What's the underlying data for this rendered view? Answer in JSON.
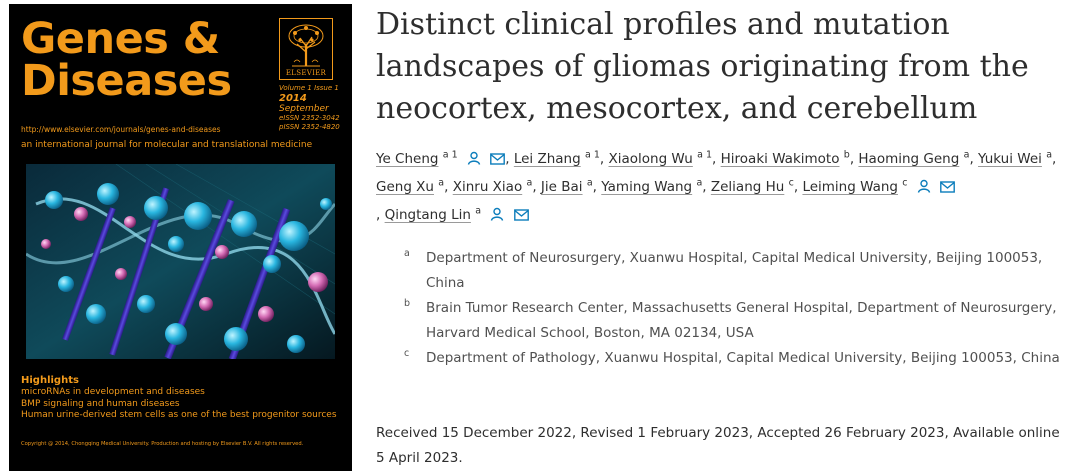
{
  "cover": {
    "title_line1": "Genes &",
    "title_line2": "Diseases",
    "publisher_logo_text": "ELSEVIER",
    "volume_issue": "Volume 1 Issue 1",
    "year": "2014",
    "month": "September",
    "eissn": "eISSN 2352-3042",
    "pissn": "pISSN 2352-4820",
    "url": "http://www.elsevier.com/journals/genes-and-diseases",
    "tagline": "an international journal for molecular and translational medicine",
    "highlights_title": "Highlights",
    "highlights": [
      "microRNAs in development and diseases",
      "BMP signaling and human diseases",
      "Human urine-derived stem cells as one of the best progenitor sources"
    ],
    "copyright": "Copyright @ 2014, Chongqing Medical University. Production and hosting by Elsevier B.V. All rights reserved.",
    "accent_color": "#f29a1b"
  },
  "article": {
    "title": "Distinct clinical profiles and mutation landscapes of gliomas originating from the neocortex, mesocortex, and cerebellum",
    "authors": [
      {
        "name": "Ye Cheng",
        "sup": "a 1",
        "person_icon": true,
        "mail_icon": true
      },
      {
        "name": "Lei Zhang",
        "sup": "a 1"
      },
      {
        "name": "Xiaolong Wu",
        "sup": "a 1"
      },
      {
        "name": "Hiroaki Wakimoto",
        "sup": "b"
      },
      {
        "name": "Haoming Geng",
        "sup": "a"
      },
      {
        "name": "Yukui Wei",
        "sup": "a"
      },
      {
        "name": "Geng Xu",
        "sup": "a"
      },
      {
        "name": "Xinru Xiao",
        "sup": "a"
      },
      {
        "name": "Jie Bai",
        "sup": "a"
      },
      {
        "name": "Yaming Wang",
        "sup": "a"
      },
      {
        "name": "Zeliang Hu",
        "sup": "c"
      },
      {
        "name": "Leiming Wang",
        "sup": "c",
        "person_icon": true,
        "mail_icon": true
      },
      {
        "name": "Qingtang Lin",
        "sup": "a",
        "person_icon": true,
        "mail_icon": true
      }
    ],
    "affiliations": [
      {
        "label": "a",
        "text": "Department of Neurosurgery, Xuanwu Hospital, Capital Medical University, Beijing 100053, China"
      },
      {
        "label": "b",
        "text": "Brain Tumor Research Center, Massachusetts General Hospital, Department of Neurosurgery, Harvard Medical School, Boston, MA 02134, USA"
      },
      {
        "label": "c",
        "text": "Department of Pathology, Xuanwu Hospital, Capital Medical University, Beijing 100053, China"
      }
    ],
    "dates": "Received 15 December 2022, Revised 1 February 2023, Accepted 26 February 2023, Available online 5 April 2023.",
    "icon_color": "#0c7dbb"
  }
}
